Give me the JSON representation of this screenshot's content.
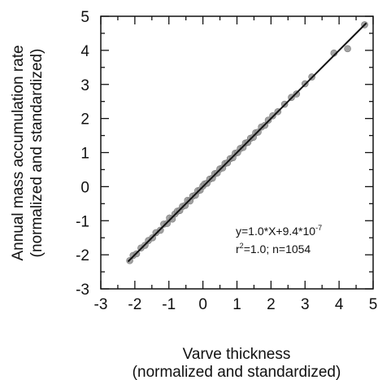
{
  "chart_data": {
    "type": "scatter",
    "xlabel_line1": "Varve thickness",
    "xlabel_line2": "(normalized and standardized)",
    "ylabel_line1": "Annual mass accumulation rate",
    "ylabel_line2": "(normalized and standardized)",
    "xlim": [
      -3,
      5
    ],
    "ylim": [
      -3,
      5
    ],
    "xticks": [
      -3,
      -2,
      -1,
      0,
      1,
      2,
      3,
      4,
      5
    ],
    "yticks": [
      -3,
      -2,
      -1,
      0,
      1,
      2,
      3,
      4,
      5
    ],
    "xtick_labels": [
      "-3",
      "-2",
      "-1",
      "0",
      "1",
      "2",
      "3",
      "4",
      "5"
    ],
    "ytick_labels": [
      "-3",
      "-2",
      "-1",
      "0",
      "1",
      "2",
      "3",
      "4",
      "5"
    ],
    "grid": false,
    "annotation": {
      "eq_main": "y=1.0*X+9.4*10",
      "eq_exp": "-7",
      "r_prefix": "r",
      "r_exp": "2",
      "r_rest": "=1.0; n=1054"
    },
    "fit_line": {
      "x": [
        -2.2,
        4.8
      ],
      "y": [
        -2.2,
        4.8
      ]
    },
    "series": [
      {
        "marker_color": "#9a9a9a",
        "points": [
          [
            -2.15,
            -2.17
          ],
          [
            -2.05,
            -2.02
          ],
          [
            -1.95,
            -1.97
          ],
          [
            -1.82,
            -1.8
          ],
          [
            -1.7,
            -1.72
          ],
          [
            -1.6,
            -1.58
          ],
          [
            -1.48,
            -1.5
          ],
          [
            -1.38,
            -1.35
          ],
          [
            -1.25,
            -1.28
          ],
          [
            -1.15,
            -1.1
          ],
          [
            -1.05,
            -1.08
          ],
          [
            -0.98,
            -0.92
          ],
          [
            -0.9,
            -0.95
          ],
          [
            -0.82,
            -0.8
          ],
          [
            -0.75,
            -0.72
          ],
          [
            -0.68,
            -0.7
          ],
          [
            -0.6,
            -0.58
          ],
          [
            -0.52,
            -0.55
          ],
          [
            -0.45,
            -0.4
          ],
          [
            -0.38,
            -0.42
          ],
          [
            -0.3,
            -0.28
          ],
          [
            -0.22,
            -0.25
          ],
          [
            -0.15,
            -0.12
          ],
          [
            -0.08,
            -0.1
          ],
          [
            0.0,
            0.02
          ],
          [
            0.05,
            0.08
          ],
          [
            0.12,
            0.1
          ],
          [
            0.2,
            0.22
          ],
          [
            0.28,
            0.25
          ],
          [
            0.35,
            0.38
          ],
          [
            0.42,
            0.4
          ],
          [
            0.5,
            0.52
          ],
          [
            0.58,
            0.55
          ],
          [
            0.65,
            0.68
          ],
          [
            0.72,
            0.7
          ],
          [
            0.8,
            0.82
          ],
          [
            0.88,
            0.85
          ],
          [
            0.95,
            0.98
          ],
          [
            1.02,
            1.0
          ],
          [
            1.1,
            1.12
          ],
          [
            1.18,
            1.15
          ],
          [
            1.25,
            1.28
          ],
          [
            1.32,
            1.3
          ],
          [
            1.4,
            1.42
          ],
          [
            1.48,
            1.45
          ],
          [
            1.55,
            1.58
          ],
          [
            1.62,
            1.6
          ],
          [
            1.72,
            1.75
          ],
          [
            1.82,
            1.8
          ],
          [
            1.92,
            1.95
          ],
          [
            2.05,
            2.08
          ],
          [
            2.2,
            2.2
          ],
          [
            2.4,
            2.42
          ],
          [
            2.6,
            2.62
          ],
          [
            2.75,
            2.72
          ],
          [
            3.0,
            3.02
          ],
          [
            3.2,
            3.22
          ],
          [
            3.85,
            3.92
          ],
          [
            4.25,
            4.05
          ],
          [
            4.75,
            4.75
          ]
        ]
      }
    ]
  }
}
